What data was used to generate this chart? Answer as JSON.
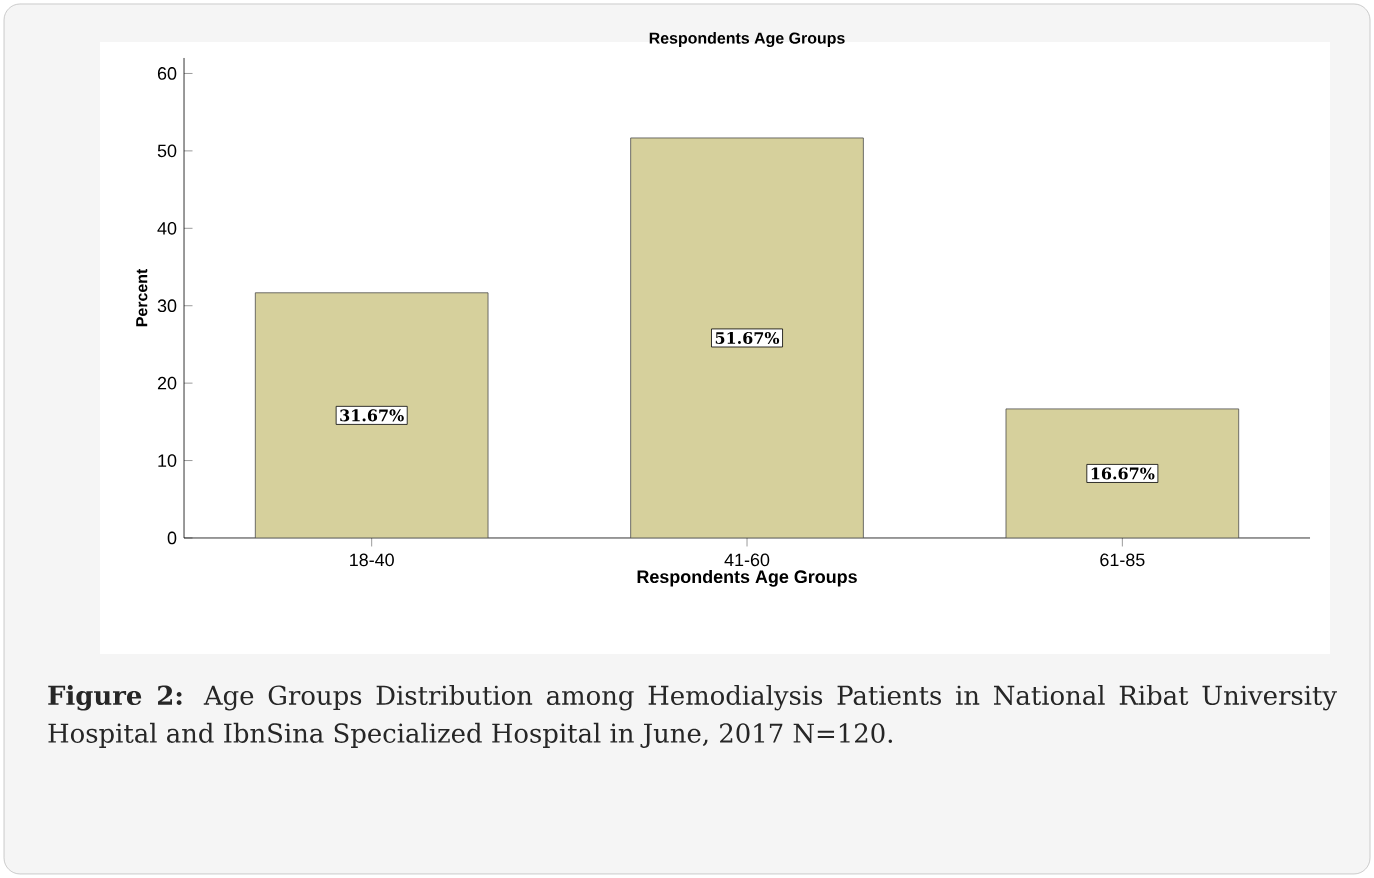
{
  "chart_data": {
    "type": "bar",
    "title": "Respondents Age Groups",
    "xlabel": "Respondents Age Groups",
    "ylabel": "Percent",
    "categories": [
      "18-40",
      "41-60",
      "61-85"
    ],
    "values": [
      31.67,
      51.67,
      16.67
    ],
    "value_labels": [
      "31.67%",
      "51.67%",
      "16.67%"
    ],
    "color": "#d6d09c",
    "ylim": [
      0,
      62
    ],
    "yticks": [
      0,
      10,
      20,
      30,
      40,
      50,
      60
    ],
    "annotations": [
      "**Figure 2:** Age Groups Distribution among Hemodialysis Patients in National Ribat University Hospital and IbnSina Specialized Hospital in June, 2017 N=120."
    ]
  }
}
